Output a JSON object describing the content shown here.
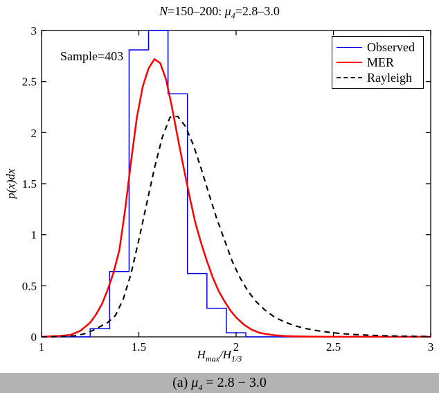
{
  "figure": {
    "title": {
      "n": "N",
      "eq1": "=150–200: ",
      "mu": "μ",
      "mu_sub": "4",
      "eq2": "=2.8–3.0"
    },
    "annotation": "Sample=403",
    "ylabel": "p(x)dx",
    "xlabel": {
      "h1": "H",
      "sub1": "max",
      "slash": "/",
      "h2": "H",
      "sub2": "1/3"
    },
    "caption": {
      "prefix": "(a) ",
      "mu": "μ",
      "sub": "4",
      "rest": " = 2.8 − 3.0"
    },
    "colors": {
      "observed": "#0000ee",
      "mer": "#ff0000",
      "rayleigh": "#000000",
      "caption_bg": "#b3b3b3",
      "axes": "#000000"
    }
  },
  "chart_data": {
    "type": "composite",
    "title": "N=150-200: mu_4=2.8-3.0",
    "xlabel": "H_max/H_1/3",
    "ylabel": "p(x)dx",
    "xlim": [
      1,
      3
    ],
    "ylim": [
      0,
      3
    ],
    "xticks": [
      1,
      1.5,
      2,
      2.5,
      3
    ],
    "xtick_labels": [
      "1",
      "1.5",
      "2",
      "2.5",
      "3"
    ],
    "yticks": [
      0,
      0.5,
      1,
      1.5,
      2,
      2.5,
      3
    ],
    "ytick_labels": [
      "0",
      "0.5",
      "1",
      "1.5",
      "2",
      "2.5",
      "3"
    ],
    "grid": false,
    "annotation": "Sample=403",
    "legend": {
      "position": "top-right",
      "entries": [
        "Observed",
        "MER",
        "Rayleigh"
      ]
    },
    "series": [
      {
        "name": "Observed",
        "type": "histogram_step",
        "color": "#0000ee",
        "bin_edges": [
          1.25,
          1.35,
          1.45,
          1.55,
          1.65,
          1.75,
          1.85,
          1.95,
          2.05
        ],
        "values": [
          0.08,
          0.64,
          2.81,
          3.0,
          2.38,
          0.62,
          0.28,
          0.04
        ],
        "sample_size": 403
      },
      {
        "name": "MER",
        "type": "line",
        "style": "solid",
        "color": "#ff0000",
        "x": [
          1.0,
          1.05,
          1.1,
          1.15,
          1.2,
          1.25,
          1.28,
          1.31,
          1.34,
          1.37,
          1.4,
          1.43,
          1.46,
          1.49,
          1.52,
          1.55,
          1.58,
          1.61,
          1.64,
          1.67,
          1.7,
          1.73,
          1.76,
          1.79,
          1.82,
          1.85,
          1.88,
          1.91,
          1.94,
          1.97,
          2.0,
          2.04,
          2.08,
          2.12,
          2.16,
          2.2,
          2.25,
          2.3,
          2.4,
          2.5,
          2.75,
          3.0
        ],
        "y": [
          0,
          0.005,
          0.01,
          0.02,
          0.06,
          0.14,
          0.22,
          0.32,
          0.46,
          0.63,
          0.85,
          1.25,
          1.72,
          2.15,
          2.45,
          2.63,
          2.72,
          2.68,
          2.52,
          2.25,
          1.95,
          1.66,
          1.38,
          1.12,
          0.92,
          0.74,
          0.58,
          0.45,
          0.35,
          0.26,
          0.19,
          0.12,
          0.07,
          0.04,
          0.025,
          0.015,
          0.008,
          0.005,
          0.002,
          0.001,
          0.001,
          0.001
        ],
        "peak": {
          "x": 1.58,
          "y": 2.72
        }
      },
      {
        "name": "Rayleigh",
        "type": "line",
        "style": "dashed",
        "color": "#000000",
        "x": [
          1.0,
          1.08,
          1.12,
          1.17,
          1.22,
          1.26,
          1.3,
          1.34,
          1.38,
          1.42,
          1.46,
          1.5,
          1.54,
          1.58,
          1.62,
          1.66,
          1.7,
          1.74,
          1.78,
          1.82,
          1.86,
          1.9,
          1.94,
          1.98,
          2.02,
          2.06,
          2.1,
          2.15,
          2.2,
          2.25,
          2.3,
          2.36,
          2.42,
          2.48,
          2.54,
          2.6,
          2.68,
          2.76,
          2.84,
          2.92,
          3.0
        ],
        "y": [
          0,
          0.002,
          0.005,
          0.01,
          0.03,
          0.06,
          0.1,
          0.14,
          0.21,
          0.37,
          0.62,
          0.95,
          1.3,
          1.65,
          1.95,
          2.15,
          2.16,
          2.06,
          1.88,
          1.65,
          1.4,
          1.16,
          0.95,
          0.74,
          0.58,
          0.45,
          0.35,
          0.26,
          0.19,
          0.145,
          0.11,
          0.08,
          0.06,
          0.045,
          0.032,
          0.024,
          0.016,
          0.011,
          0.007,
          0.005,
          0.004
        ],
        "peak": {
          "x": 1.68,
          "y": 2.16
        }
      }
    ]
  }
}
